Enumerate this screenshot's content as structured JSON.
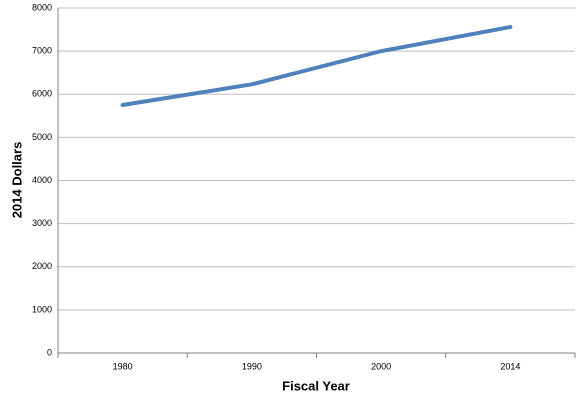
{
  "chart_data": {
    "type": "line",
    "x_label": "Fiscal Year",
    "y_label": "2014 Dollars",
    "categories": [
      "1980",
      "1990",
      "2000",
      "2014"
    ],
    "series": [
      {
        "color": "#4f81bd",
        "values": [
          5750,
          6230,
          7000,
          7560
        ]
      }
    ],
    "ylim": [
      0,
      8000
    ],
    "yticks": [
      0,
      1000,
      2000,
      3000,
      4000,
      5000,
      6000,
      7000,
      8000
    ],
    "grid": true
  }
}
